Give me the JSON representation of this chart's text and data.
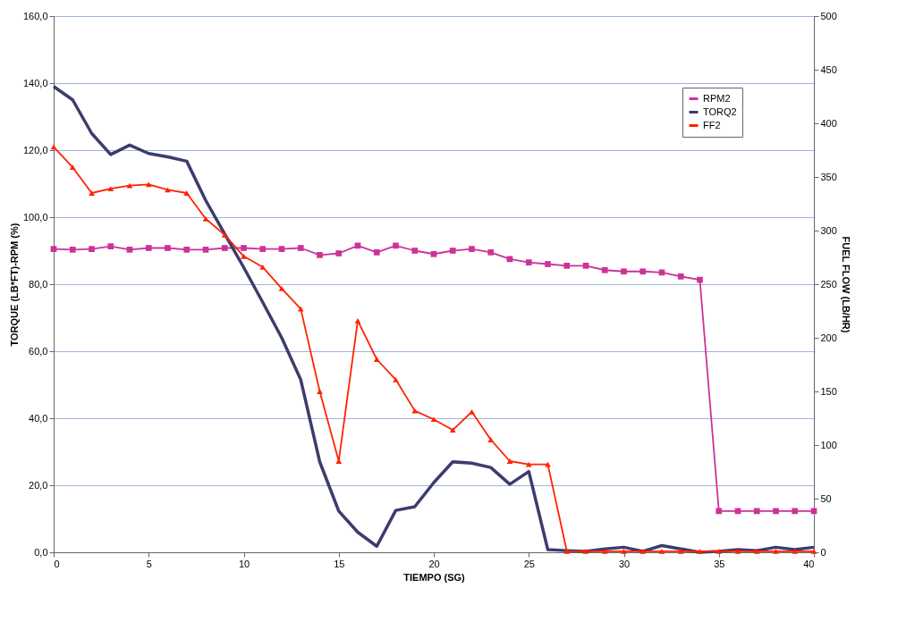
{
  "chart_data": {
    "type": "line",
    "xlabel": "TIEMPO (SG)",
    "ylabel": "TORQUE (LB*FT)-RPM (%)",
    "y2label": "FUEL FLOW (LB/HR)",
    "x": [
      0,
      1,
      2,
      3,
      4,
      5,
      6,
      7,
      8,
      9,
      10,
      11,
      12,
      13,
      14,
      15,
      16,
      17,
      18,
      19,
      20,
      21,
      22,
      23,
      24,
      25,
      26,
      27,
      28,
      29,
      30,
      31,
      32,
      33,
      34,
      35,
      36,
      37,
      38,
      39,
      40
    ],
    "series": [
      {
        "name": "RPM2",
        "color": "#cc3399",
        "marker": "square",
        "values": [
          90.5,
          90.3,
          90.5,
          91.3,
          90.3,
          90.8,
          90.8,
          90.3,
          90.3,
          90.8,
          90.8,
          90.5,
          90.5,
          90.8,
          88.7,
          89.2,
          91.5,
          89.5,
          91.5,
          90,
          89,
          90,
          90.5,
          89.5,
          87.5,
          86.5,
          86,
          85.5,
          85.5,
          84.2,
          83.8,
          83.8,
          83.5,
          82.3,
          81.3,
          12.3,
          12.3,
          12.3,
          12.3,
          12.3,
          12.3
        ]
      },
      {
        "name": "TORQ2",
        "color": "#3c3c6e",
        "marker": "none",
        "values": [
          139,
          135,
          125,
          118.7,
          121.5,
          119,
          118,
          116.7,
          105,
          95,
          85,
          74.6,
          64,
          51.5,
          27,
          12.3,
          6,
          1.8,
          12.5,
          13.6,
          20.8,
          27,
          26.6,
          25.3,
          20.3,
          24.1,
          0.8,
          0.5,
          0.3,
          1,
          1.5,
          0.3,
          2,
          1,
          0,
          0.3,
          0.8,
          0.5,
          1.5,
          0.8,
          1.5
        ]
      },
      {
        "name": "FF2",
        "color": "#ff2200",
        "marker": "triangle",
        "axis": "y2",
        "values": [
          378,
          359,
          335,
          339,
          342,
          343,
          338,
          335,
          311,
          296,
          276,
          266,
          246,
          227,
          150,
          85,
          216,
          180,
          161,
          132,
          124,
          114,
          131,
          105,
          85,
          82,
          82,
          1,
          1,
          1,
          1,
          1,
          1,
          1,
          1,
          1,
          1,
          1,
          1,
          1,
          1
        ]
      }
    ],
    "xlim": [
      0,
      40
    ],
    "xticks": [
      0,
      5,
      10,
      15,
      20,
      25,
      30,
      35,
      40
    ],
    "ylim": [
      0,
      160
    ],
    "yticks": [
      {
        "value": 0,
        "label": "0,0"
      },
      {
        "value": 20,
        "label": "20,0"
      },
      {
        "value": 40,
        "label": "40,0"
      },
      {
        "value": 60,
        "label": "60,0"
      },
      {
        "value": 80,
        "label": "80,0"
      },
      {
        "value": 100,
        "label": "100,0"
      },
      {
        "value": 120,
        "label": "120,0"
      },
      {
        "value": 140,
        "label": "140,0"
      },
      {
        "value": 160,
        "label": "160,0"
      }
    ],
    "y2lim": [
      0,
      500
    ],
    "y2ticks": [
      0,
      50,
      100,
      150,
      200,
      250,
      300,
      350,
      400,
      450,
      500
    ],
    "grid": "y",
    "legend": "top right",
    "line_style": "solid"
  }
}
